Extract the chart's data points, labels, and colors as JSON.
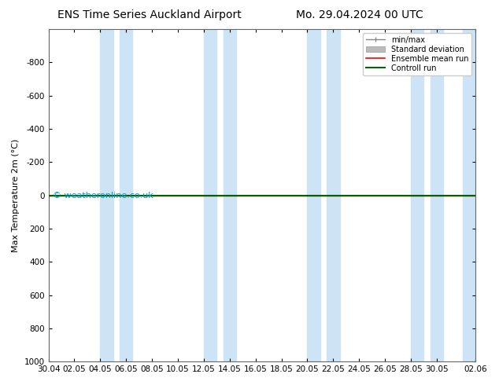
{
  "title_left": "ENS Time Series Auckland Airport",
  "title_right": "Mo. 29.04.2024 00 UTC",
  "ylabel": "Max Temperature 2m (°C)",
  "ylim_bottom": -1000,
  "ylim_top": 1000,
  "yticks": [
    -800,
    -600,
    -400,
    -200,
    0,
    200,
    400,
    600,
    800,
    1000
  ],
  "x_tick_labels": [
    "30.04",
    "02.05",
    "04.05",
    "06.05",
    "08.05",
    "10.05",
    "12.05",
    "14.05",
    "16.05",
    "18.05",
    "20.05",
    "22.05",
    "24.05",
    "26.05",
    "28.05",
    "30.05",
    "02.06"
  ],
  "x_tick_positions": [
    0,
    2,
    4,
    6,
    8,
    10,
    12,
    14,
    16,
    18,
    20,
    22,
    24,
    26,
    28,
    30,
    33
  ],
  "shaded_bands": [
    [
      4,
      5
    ],
    [
      5.5,
      6.5
    ],
    [
      12,
      13
    ],
    [
      13.5,
      14.5
    ],
    [
      20,
      21
    ],
    [
      21.5,
      22.5
    ],
    [
      28,
      29
    ],
    [
      29.5,
      30.5
    ],
    [
      32,
      33
    ]
  ],
  "ensemble_mean_y": 0,
  "control_run_y": 0,
  "watermark": "© weatheronline.co.uk",
  "background_color": "#ffffff",
  "plot_bg_color": "#ffffff",
  "shading_color": "#cce4f5",
  "ensemble_mean_color": "#ff0000",
  "control_run_color": "#006400",
  "legend_labels": [
    "min/max",
    "Standard deviation",
    "Ensemble mean run",
    "Controll run"
  ],
  "title_fontsize": 10,
  "tick_fontsize": 7.5,
  "ylabel_fontsize": 8,
  "watermark_fontsize": 8,
  "watermark_color": "#0099cc"
}
